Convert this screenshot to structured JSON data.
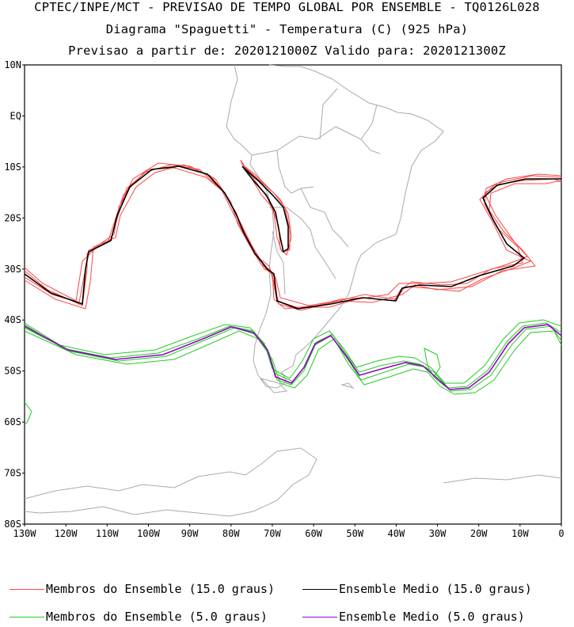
{
  "header": {
    "line1": "CPTEC/INPE/MCT - PREVISAO DE TEMPO GLOBAL POR ENSEMBLE - TQ0126L028",
    "line2": "Diagrama \"Spaguetti\" - Temperatura (C) (925 hPa)",
    "line3": "Previsao a partir de: 2020121000Z  Valido para: 2020121300Z"
  },
  "axes": {
    "lat_labels": [
      "10N",
      "EQ",
      "10S",
      "20S",
      "30S",
      "40S",
      "50S",
      "60S",
      "70S",
      "80S"
    ],
    "lon_labels": [
      "130W",
      "120W",
      "110W",
      "100W",
      "90W",
      "80W",
      "70W",
      "60W",
      "50W",
      "40W",
      "30W",
      "20W",
      "10W",
      "0"
    ]
  },
  "legend": {
    "members_15": "Membros do Ensemble (15.0 graus)",
    "mean_15": "Ensemble Medio (15.0 graus)",
    "members_5": "Membros do Ensemble (5.0 graus)",
    "mean_5": "Ensemble Medio (5.0 graus)"
  },
  "colors": {
    "members_15": "#ff4444",
    "mean_15": "#000000",
    "members_5": "#22cc22",
    "mean_5": "#9900cc",
    "coast": "#aaaaaa"
  }
}
